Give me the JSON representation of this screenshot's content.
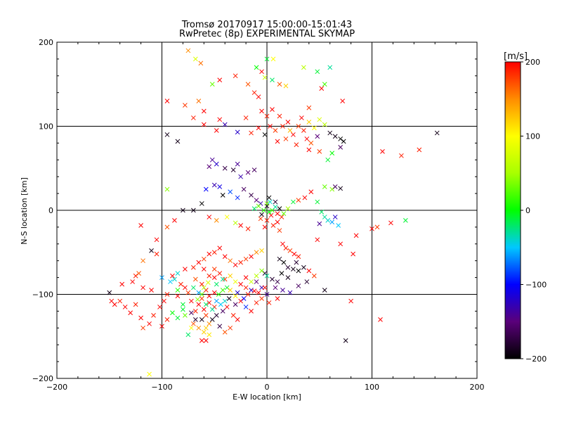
{
  "chart_data": {
    "type": "scatter",
    "title": "Tromsø 20170917 15:00:00-15:01:43",
    "subtitle": "RwPretec (8p) EXPERIMENTAL SKYMAP",
    "xlabel": "E-W location [km]",
    "ylabel": "N-S location [km]",
    "xlim": [
      -200,
      200
    ],
    "ylim": [
      -200,
      200
    ],
    "x_ticks": [
      -200,
      -100,
      0,
      100,
      200
    ],
    "y_ticks": [
      -200,
      -100,
      0,
      100,
      200
    ],
    "x_tick_labels": [
      "−200",
      "−100",
      "0",
      "100",
      "200"
    ],
    "y_tick_labels": [
      "−200",
      "−100",
      "0",
      "100",
      "200"
    ],
    "grid": true,
    "marker": "x",
    "colorbar": {
      "label": "[m/s]",
      "range": [
        -200,
        200
      ],
      "ticks": [
        200,
        100,
        0,
        -100,
        -200
      ],
      "tick_labels": [
        "200",
        "100",
        "0",
        "−100",
        "−200"
      ]
    },
    "points": [
      [
        -75,
        190,
        150
      ],
      [
        -63,
        175,
        160
      ],
      [
        -68,
        180,
        80
      ],
      [
        -52,
        150,
        30
      ],
      [
        -45,
        155,
        200
      ],
      [
        -30,
        160,
        190
      ],
      [
        -12,
        140,
        190
      ],
      [
        -18,
        150,
        170
      ],
      [
        -8,
        135,
        200
      ],
      [
        5,
        155,
        -20
      ],
      [
        18,
        148,
        120
      ],
      [
        12,
        150,
        170
      ],
      [
        35,
        170,
        60
      ],
      [
        48,
        165,
        -10
      ],
      [
        52,
        145,
        200
      ],
      [
        60,
        170,
        -30
      ],
      [
        55,
        150,
        20
      ],
      [
        40,
        122,
        180
      ],
      [
        72,
        130,
        200
      ],
      [
        0,
        180,
        -10
      ],
      [
        6,
        180,
        100
      ],
      [
        -5,
        165,
        200
      ],
      [
        -10,
        170,
        0
      ],
      [
        -2,
        158,
        70
      ],
      [
        -95,
        130,
        200
      ],
      [
        -78,
        125,
        180
      ],
      [
        -65,
        130,
        160
      ],
      [
        -70,
        110,
        190
      ],
      [
        -60,
        118,
        200
      ],
      [
        -45,
        108,
        200
      ],
      [
        -20,
        110,
        190
      ],
      [
        -5,
        118,
        200
      ],
      [
        0,
        112,
        190
      ],
      [
        5,
        120,
        200
      ],
      [
        8,
        95,
        180
      ],
      [
        15,
        100,
        190
      ],
      [
        20,
        105,
        200
      ],
      [
        25,
        90,
        200
      ],
      [
        30,
        100,
        180
      ],
      [
        35,
        95,
        190
      ],
      [
        40,
        105,
        120
      ],
      [
        45,
        98,
        100
      ],
      [
        50,
        108,
        80
      ],
      [
        55,
        102,
        60
      ],
      [
        38,
        85,
        200
      ],
      [
        28,
        78,
        190
      ],
      [
        42,
        80,
        170
      ],
      [
        48,
        88,
        -150
      ],
      [
        60,
        92,
        -190
      ],
      [
        65,
        88,
        -190
      ],
      [
        70,
        85,
        -200
      ],
      [
        10,
        82,
        200
      ],
      [
        18,
        85,
        180
      ],
      [
        22,
        95,
        130
      ],
      [
        33,
        110,
        200
      ],
      [
        12,
        112,
        190
      ],
      [
        3,
        100,
        200
      ],
      [
        -8,
        98,
        200
      ],
      [
        -15,
        92,
        190
      ],
      [
        -28,
        93,
        -120
      ],
      [
        -40,
        102,
        -130
      ],
      [
        -60,
        102,
        200
      ],
      [
        -48,
        95,
        200
      ],
      [
        -95,
        90,
        -190
      ],
      [
        -85,
        82,
        -190
      ],
      [
        -2,
        90,
        -200
      ],
      [
        40,
        72,
        200
      ],
      [
        50,
        70,
        180
      ],
      [
        58,
        60,
        -10
      ],
      [
        62,
        68,
        0
      ],
      [
        70,
        75,
        -160
      ],
      [
        73,
        82,
        -200
      ],
      [
        110,
        70,
        200
      ],
      [
        128,
        65,
        190
      ],
      [
        145,
        72,
        190
      ],
      [
        162,
        92,
        -190
      ],
      [
        -55,
        52,
        -150
      ],
      [
        -52,
        60,
        -140
      ],
      [
        -48,
        55,
        -120
      ],
      [
        -40,
        50,
        -170
      ],
      [
        -32,
        48,
        -180
      ],
      [
        -18,
        45,
        -150
      ],
      [
        -12,
        48,
        -160
      ],
      [
        -28,
        55,
        -140
      ],
      [
        -25,
        40,
        -130
      ],
      [
        -50,
        30,
        -130
      ],
      [
        -58,
        25,
        -100
      ],
      [
        -45,
        28,
        -110
      ],
      [
        -35,
        22,
        -80
      ],
      [
        -28,
        15,
        -90
      ],
      [
        -22,
        25,
        -160
      ],
      [
        -15,
        18,
        -170
      ],
      [
        -10,
        12,
        -150
      ],
      [
        -6,
        8,
        -130
      ],
      [
        0,
        5,
        -190
      ],
      [
        2,
        15,
        -200
      ],
      [
        8,
        10,
        -180
      ],
      [
        12,
        2,
        -200
      ],
      [
        -5,
        -5,
        -190
      ],
      [
        -42,
        18,
        -200
      ],
      [
        -62,
        8,
        -200
      ],
      [
        -70,
        0,
        -190
      ],
      [
        -80,
        0,
        -190
      ],
      [
        -55,
        -8,
        200
      ],
      [
        -48,
        -12,
        150
      ],
      [
        -38,
        -8,
        100
      ],
      [
        -30,
        -15,
        60
      ],
      [
        -25,
        -18,
        200
      ],
      [
        -18,
        -22,
        190
      ],
      [
        -88,
        -12,
        200
      ],
      [
        -95,
        -20,
        170
      ],
      [
        -105,
        -35,
        200
      ],
      [
        -110,
        -48,
        -190
      ],
      [
        -120,
        -18,
        200
      ],
      [
        -95,
        25,
        40
      ],
      [
        -8,
        5,
        30
      ],
      [
        -3,
        0,
        10
      ],
      [
        2,
        -2,
        0
      ],
      [
        5,
        0,
        20
      ],
      [
        0,
        8,
        40
      ],
      [
        -12,
        2,
        -20
      ],
      [
        8,
        4,
        -30
      ],
      [
        -6,
        -10,
        180
      ],
      [
        0,
        -12,
        190
      ],
      [
        4,
        -6,
        200
      ],
      [
        6,
        -18,
        190
      ],
      [
        10,
        -14,
        200
      ],
      [
        12,
        -24,
        180
      ],
      [
        14,
        -8,
        190
      ],
      [
        -2,
        -20,
        200
      ],
      [
        3,
        10,
        -40
      ],
      [
        10,
        -4,
        200
      ],
      [
        16,
        -4,
        30
      ],
      [
        20,
        2,
        50
      ],
      [
        25,
        10,
        -10
      ],
      [
        30,
        12,
        180
      ],
      [
        36,
        15,
        200
      ],
      [
        42,
        22,
        200
      ],
      [
        55,
        28,
        30
      ],
      [
        62,
        25,
        40
      ],
      [
        65,
        28,
        -160
      ],
      [
        70,
        26,
        -190
      ],
      [
        48,
        10,
        -10
      ],
      [
        52,
        -2,
        -20
      ],
      [
        55,
        -8,
        -30
      ],
      [
        58,
        -12,
        -40
      ],
      [
        62,
        -14,
        -60
      ],
      [
        50,
        -16,
        -140
      ],
      [
        65,
        -8,
        -120
      ],
      [
        68,
        -18,
        -50
      ],
      [
        105,
        -20,
        180
      ],
      [
        100,
        -22,
        200
      ],
      [
        132,
        -12,
        -10
      ],
      [
        118,
        -15,
        200
      ],
      [
        85,
        -30,
        200
      ],
      [
        48,
        -35,
        200
      ],
      [
        70,
        -40,
        200
      ],
      [
        82,
        -52,
        200
      ],
      [
        15,
        -40,
        200
      ],
      [
        18,
        -45,
        190
      ],
      [
        22,
        -48,
        180
      ],
      [
        26,
        -52,
        200
      ],
      [
        30,
        -55,
        190
      ],
      [
        12,
        -58,
        -190
      ],
      [
        16,
        -62,
        -200
      ],
      [
        20,
        -68,
        -180
      ],
      [
        25,
        -70,
        -190
      ],
      [
        30,
        -72,
        -200
      ],
      [
        35,
        -68,
        -190
      ],
      [
        28,
        -62,
        -180
      ],
      [
        14,
        -75,
        -200
      ],
      [
        20,
        -80,
        -190
      ],
      [
        10,
        -85,
        -170
      ],
      [
        5,
        -82,
        -180
      ],
      [
        8,
        -92,
        -150
      ],
      [
        15,
        -95,
        -140
      ],
      [
        22,
        -98,
        -130
      ],
      [
        30,
        -90,
        -160
      ],
      [
        38,
        -85,
        -180
      ],
      [
        45,
        -78,
        180
      ],
      [
        40,
        -72,
        200
      ],
      [
        10,
        -105,
        200
      ],
      [
        0,
        -100,
        -140
      ],
      [
        -5,
        -92,
        -130
      ],
      [
        -10,
        -85,
        -150
      ],
      [
        -15,
        -95,
        -120
      ],
      [
        2,
        -110,
        190
      ],
      [
        -2,
        -75,
        -180
      ],
      [
        -50,
        -80,
        200
      ],
      [
        -45,
        -75,
        190
      ],
      [
        -40,
        -82,
        180
      ],
      [
        -35,
        -78,
        120
      ],
      [
        -30,
        -85,
        90
      ],
      [
        -25,
        -88,
        200
      ],
      [
        -20,
        -92,
        190
      ],
      [
        -15,
        -85,
        70
      ],
      [
        -10,
        -78,
        60
      ],
      [
        -5,
        -72,
        40
      ],
      [
        0,
        -78,
        -30
      ],
      [
        -38,
        -92,
        -10
      ],
      [
        -42,
        -95,
        20
      ],
      [
        -46,
        -100,
        10
      ],
      [
        -50,
        -98,
        200
      ],
      [
        -55,
        -102,
        200
      ],
      [
        -58,
        -95,
        190
      ],
      [
        -62,
        -105,
        180
      ],
      [
        -55,
        -110,
        200
      ],
      [
        -50,
        -115,
        190
      ],
      [
        -60,
        -118,
        200
      ],
      [
        -58,
        -125,
        180
      ],
      [
        -65,
        -112,
        200
      ],
      [
        -68,
        -120,
        190
      ],
      [
        -72,
        -108,
        200
      ],
      [
        -75,
        -98,
        180
      ],
      [
        -78,
        -92,
        200
      ],
      [
        -82,
        -88,
        190
      ],
      [
        -85,
        -102,
        200
      ],
      [
        -70,
        -135,
        170
      ],
      [
        -65,
        -140,
        150
      ],
      [
        -60,
        -145,
        120
      ],
      [
        -55,
        -148,
        110
      ],
      [
        -58,
        -155,
        200
      ],
      [
        -62,
        -155,
        200
      ],
      [
        -75,
        -148,
        -20
      ],
      [
        -72,
        -140,
        100
      ],
      [
        -78,
        -125,
        30
      ],
      [
        -80,
        -112,
        -10
      ],
      [
        -85,
        -95,
        10
      ],
      [
        -88,
        -82,
        -40
      ],
      [
        -90,
        -78,
        200
      ],
      [
        -95,
        -100,
        190
      ],
      [
        -98,
        -108,
        200
      ],
      [
        -102,
        -115,
        200
      ],
      [
        -108,
        -125,
        190
      ],
      [
        -112,
        -135,
        200
      ],
      [
        -118,
        -140,
        180
      ],
      [
        -120,
        -128,
        200
      ],
      [
        -125,
        -112,
        190
      ],
      [
        -130,
        -122,
        200
      ],
      [
        -135,
        -115,
        200
      ],
      [
        -140,
        -108,
        190
      ],
      [
        -145,
        -112,
        200
      ],
      [
        -150,
        -98,
        -190
      ],
      [
        -128,
        -85,
        200
      ],
      [
        -125,
        -78,
        190
      ],
      [
        -118,
        -92,
        200
      ],
      [
        -110,
        -95,
        200
      ],
      [
        -100,
        -80,
        -60
      ],
      [
        -92,
        -85,
        -50
      ],
      [
        -85,
        -75,
        -40
      ],
      [
        -78,
        -70,
        200
      ],
      [
        -70,
        -68,
        190
      ],
      [
        -65,
        -62,
        200
      ],
      [
        -60,
        -58,
        180
      ],
      [
        -55,
        -52,
        200
      ],
      [
        -50,
        -50,
        190
      ],
      [
        -45,
        -45,
        200
      ],
      [
        -40,
        -55,
        200
      ],
      [
        -35,
        -60,
        160
      ],
      [
        -30,
        -65,
        200
      ],
      [
        -25,
        -62,
        190
      ],
      [
        -20,
        -58,
        180
      ],
      [
        -15,
        -55,
        200
      ],
      [
        -10,
        -50,
        150
      ],
      [
        -5,
        -48,
        120
      ],
      [
        -62,
        -88,
        190
      ],
      [
        -68,
        -82,
        170
      ],
      [
        -70,
        -92,
        -20
      ],
      [
        -65,
        -98,
        -60
      ],
      [
        -48,
        -88,
        -20
      ],
      [
        -42,
        -82,
        -30
      ],
      [
        -36,
        -105,
        -190
      ],
      [
        -30,
        -112,
        -160
      ],
      [
        -28,
        -98,
        -120
      ],
      [
        -22,
        -105,
        -100
      ],
      [
        -20,
        -115,
        -90
      ],
      [
        -15,
        -120,
        200
      ],
      [
        -10,
        -110,
        190
      ],
      [
        -8,
        -98,
        200
      ],
      [
        -5,
        -105,
        180
      ],
      [
        -2,
        -92,
        200
      ],
      [
        -52,
        -130,
        -190
      ],
      [
        -48,
        -125,
        -180
      ],
      [
        -45,
        -138,
        -170
      ],
      [
        -42,
        -120,
        -160
      ],
      [
        -38,
        -115,
        200
      ],
      [
        -32,
        -125,
        190
      ],
      [
        -28,
        -130,
        200
      ],
      [
        -35,
        -140,
        180
      ],
      [
        -40,
        -145,
        170
      ],
      [
        -55,
        -135,
        150
      ],
      [
        -58,
        -140,
        120
      ],
      [
        -62,
        -130,
        -190
      ],
      [
        -68,
        -130,
        -180
      ],
      [
        -72,
        -122,
        -160
      ],
      [
        -80,
        -118,
        -10
      ],
      [
        -85,
        -128,
        -10
      ],
      [
        -90,
        -122,
        0
      ],
      [
        -95,
        -130,
        190
      ],
      [
        -100,
        -138,
        200
      ],
      [
        -48,
        -108,
        -60
      ],
      [
        -44,
        -112,
        -50
      ],
      [
        -40,
        -108,
        -40
      ],
      [
        -52,
        -118,
        -30
      ],
      [
        -58,
        -112,
        -20
      ],
      [
        -62,
        -100,
        30
      ],
      [
        -66,
        -106,
        40
      ],
      [
        -60,
        -92,
        60
      ],
      [
        -56,
        -86,
        80
      ],
      [
        -35,
        -95,
        120
      ],
      [
        -30,
        -102,
        110
      ],
      [
        -25,
        -108,
        200
      ],
      [
        -18,
        -100,
        190
      ],
      [
        -12,
        -96,
        200
      ],
      [
        -20,
        -80,
        200
      ],
      [
        -60,
        -70,
        200
      ],
      [
        -55,
        -78,
        190
      ],
      [
        -50,
        -70,
        180
      ],
      [
        75,
        -155,
        -190
      ],
      [
        55,
        -95,
        -190
      ],
      [
        80,
        -108,
        200
      ],
      [
        108,
        -130,
        200
      ],
      [
        -112,
        -195,
        100
      ],
      [
        -138,
        -88,
        200
      ],
      [
        -148,
        -108,
        200
      ],
      [
        -122,
        -75,
        170
      ],
      [
        -118,
        -60,
        160
      ],
      [
        -105,
        -52,
        190
      ]
    ]
  }
}
